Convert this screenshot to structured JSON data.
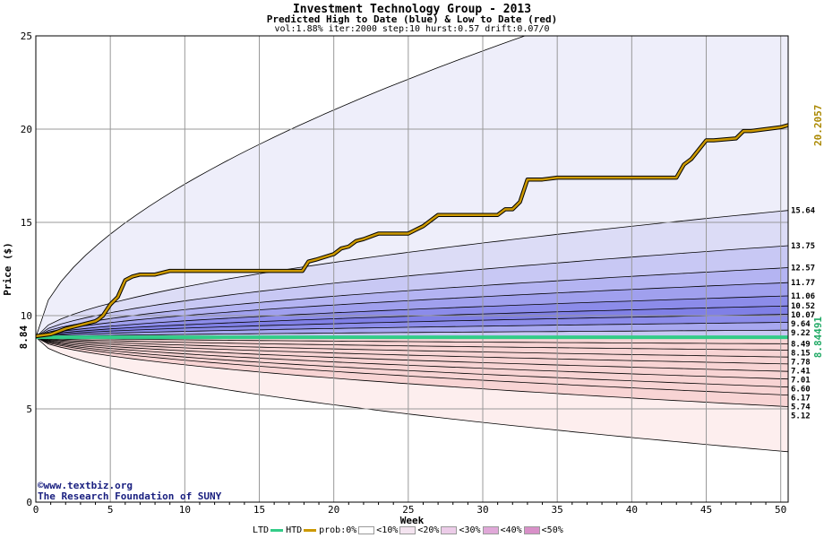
{
  "header": {
    "title": "Investment Technology Group - 2013",
    "subtitle": "Predicted High to Date (blue) &  Low to Date (red)",
    "params": "vol:1.88% iter:2000 step:10 hurst:0.57 drift:0.07/0"
  },
  "footer": {
    "copyright": "©www.textbiz.org",
    "org": "The Research Foundation of SUNY"
  },
  "legend": {
    "ltd": "LTD",
    "htd": "HTD",
    "prob": "prob:0%",
    "p10": "<10%",
    "p20": "<20%",
    "p30": "<30%",
    "p40": "<40%",
    "p50": "<50%",
    "ltd_color": "#33cc88",
    "htd_color": "#cc9900"
  },
  "chart_data": {
    "type": "area",
    "xlabel": "Week",
    "ylabel": "Price ($)",
    "xlim": [
      0,
      50.5
    ],
    "ylim": [
      0,
      25
    ],
    "xticks": [
      0,
      5,
      10,
      15,
      20,
      25,
      30,
      35,
      40,
      45,
      50
    ],
    "yticks": [
      5,
      10,
      15,
      20,
      25
    ],
    "grid": true,
    "start_price": 8.84,
    "start_label": "8.84",
    "ltd_value_label": "8.84491",
    "htd_value_label": "20.2057",
    "upper_quantiles": [
      {
        "label": "15.64",
        "end": 15.64,
        "fill": "#dcdcf6"
      },
      {
        "label": "13.75",
        "end": 13.75,
        "fill": "#c8c8f4"
      },
      {
        "label": "12.57",
        "end": 12.57,
        "fill": "#b4b4f2"
      },
      {
        "label": "11.77",
        "end": 11.77,
        "fill": "#a0a0ee"
      },
      {
        "label": "11.06",
        "end": 11.06,
        "fill": "#8c8cea"
      },
      {
        "label": "10.52",
        "end": 10.52,
        "fill": "#8080e6"
      },
      {
        "label": "10.07",
        "end": 10.07,
        "fill": "#8c8cea"
      },
      {
        "label": "9.64",
        "end": 9.64,
        "fill": "#a8a8f0"
      },
      {
        "label": "9.22",
        "end": 9.22,
        "fill": "#c8c8f4"
      }
    ],
    "upper_outer_end": 29.5,
    "lower_quantiles": [
      {
        "label": "8.49",
        "end": 8.49,
        "fill": "#fbe4e4"
      },
      {
        "label": "8.15",
        "end": 8.15,
        "fill": "#f8d4d4"
      },
      {
        "label": "7.78",
        "end": 7.78,
        "fill": "#f4bcbc"
      },
      {
        "label": "7.41",
        "end": 7.41,
        "fill": "#f2a8a8"
      },
      {
        "label": "7.01",
        "end": 7.01,
        "fill": "#f09090"
      },
      {
        "label": "6.60",
        "end": 6.6,
        "fill": "#ee8080"
      },
      {
        "label": "6.17",
        "end": 6.17,
        "fill": "#f09898"
      },
      {
        "label": "5.74",
        "end": 5.74,
        "fill": "#f4b8b8"
      },
      {
        "label": "5.12",
        "end": 5.12,
        "fill": "#f8d4d4"
      }
    ],
    "lower_outer_end": 2.7,
    "ltd_series": {
      "x": [
        0,
        50.5
      ],
      "y": [
        8.84,
        8.84
      ]
    },
    "htd_series": {
      "x": [
        0,
        1,
        2,
        3,
        3.5,
        4,
        4.2,
        4.5,
        5,
        5.5,
        6,
        6.5,
        7,
        8,
        9,
        10,
        12,
        14,
        16,
        17.9,
        18.3,
        18.8,
        20,
        20.5,
        21,
        21.5,
        22,
        23,
        24,
        25,
        25.5,
        26,
        26.5,
        27,
        28,
        29,
        30,
        31,
        31.5,
        32,
        32.5,
        33,
        34,
        35,
        40,
        43,
        43.5,
        44,
        45,
        45.5,
        47,
        47.5,
        48,
        50,
        50.5
      ],
      "y": [
        8.9,
        9.0,
        9.3,
        9.5,
        9.6,
        9.7,
        9.8,
        10.0,
        10.6,
        11.0,
        11.9,
        12.1,
        12.2,
        12.2,
        12.4,
        12.4,
        12.4,
        12.4,
        12.4,
        12.4,
        12.9,
        13.0,
        13.3,
        13.6,
        13.7,
        14.0,
        14.1,
        14.4,
        14.4,
        14.4,
        14.6,
        14.8,
        15.1,
        15.4,
        15.4,
        15.4,
        15.4,
        15.4,
        15.7,
        15.7,
        16.1,
        17.3,
        17.3,
        17.4,
        17.4,
        17.4,
        18.1,
        18.4,
        19.4,
        19.4,
        19.5,
        19.9,
        19.9,
        20.1,
        20.21
      ]
    }
  }
}
